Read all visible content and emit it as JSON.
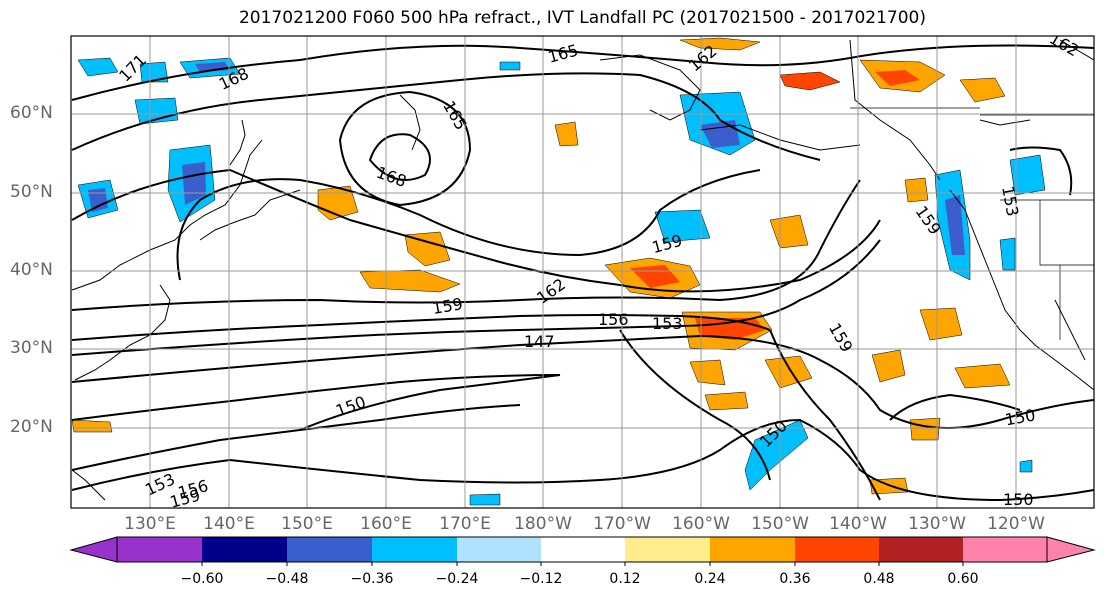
{
  "title": "2017021200 F060 500 hPa refract., IVT Landfall PC (2017021500 - 2017021700)",
  "lat_labels": [
    "60°N",
    "50°N",
    "40°N",
    "30°N",
    "20°N"
  ],
  "lon_labels": [
    "130°E",
    "140°E",
    "150°E",
    "160°E",
    "170°E",
    "180°W",
    "170°W",
    "160°W",
    "150°W",
    "140°W",
    "130°W",
    "120°W"
  ],
  "contour_labels": [
    "171",
    "168",
    "165",
    "162",
    "165",
    "168",
    "159",
    "162",
    "159",
    "156",
    "153",
    "147",
    "159",
    "150",
    "150",
    "150",
    "150",
    "153",
    "159",
    "156",
    "159",
    "153",
    "162"
  ],
  "colorbar": {
    "ticks": [
      "−0.60",
      "−0.48",
      "−0.36",
      "−0.24",
      "−0.12",
      "0.12",
      "0.24",
      "0.36",
      "0.48",
      "0.60"
    ],
    "colors": [
      "#9932cc",
      "#00008b",
      "#3a5fcd",
      "#00bfff",
      "#b0e2ff",
      "#ffffff",
      "#ffec8b",
      "#ffa500",
      "#ff4500",
      "#b22222",
      "#ff82ab"
    ]
  }
}
